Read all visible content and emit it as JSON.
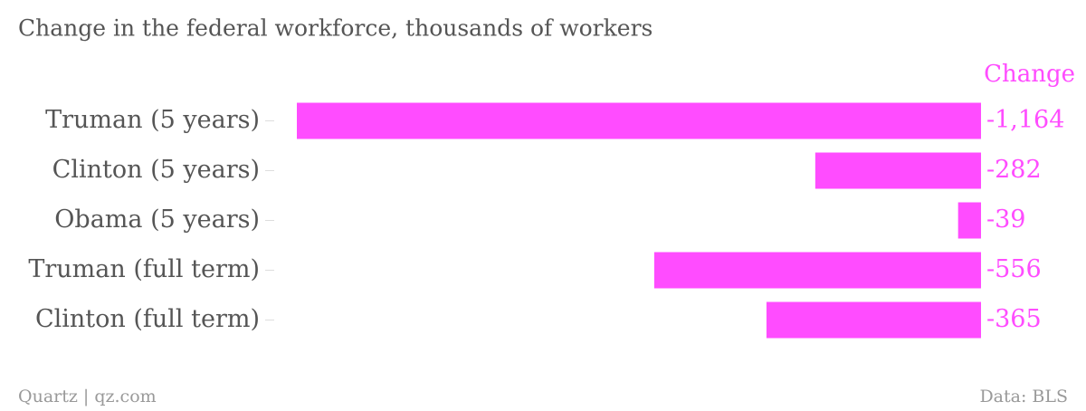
{
  "chart_data": {
    "type": "bar",
    "orientation": "horizontal",
    "title": "Change in the federal workforce, thousands of workers",
    "categories": [
      "Truman (5 years)",
      "Clinton (5 years)",
      "Obama (5 years)",
      "Truman (full term)",
      "Clinton (full term)"
    ],
    "series": [
      {
        "name": "Change",
        "color": "#ff4cff",
        "values": [
          -1164,
          -282,
          -39,
          -556,
          -365
        ],
        "value_labels": [
          "-1,164",
          "-282",
          "-39",
          "-556",
          "-365"
        ]
      }
    ],
    "xlim": [
      -1164,
      0
    ],
    "source": "Data: BLS",
    "credit": "Quartz | qz.com"
  }
}
